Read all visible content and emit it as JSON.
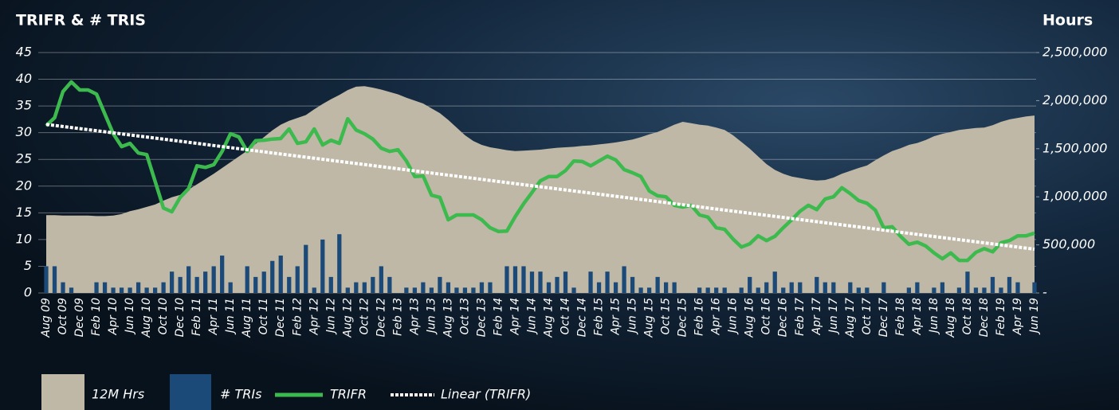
{
  "chart_data": {
    "type": "combo",
    "title": "TRIFR & # TRIS",
    "y2_label": "Hours",
    "categories": [
      "Aug 09",
      null,
      "Oct 09",
      null,
      "Dec 09",
      null,
      "Feb 10",
      null,
      "Apr 10",
      null,
      "Jun 10",
      null,
      "Aug 10",
      null,
      "Oct 10",
      null,
      "Dec 10",
      null,
      "Feb 11",
      null,
      "Apr 11",
      null,
      "Jun 11",
      null,
      "Aug 11",
      null,
      "Oct 11",
      null,
      "Dec 11",
      null,
      "Feb 12",
      null,
      "Apr 12",
      null,
      "Jun 12",
      null,
      "Aug 12",
      null,
      "Oct 12",
      null,
      "Dec 12",
      null,
      "Feb 13",
      null,
      "Apr 13",
      null,
      "Jun 13",
      null,
      "Aug 13",
      null,
      "Oct 13",
      null,
      "Dec 13",
      null,
      "Feb 14",
      null,
      "Apr 14",
      null,
      "Jun 14",
      null,
      "Aug 14",
      null,
      "Oct 14",
      null,
      "Dec 14",
      null,
      "Feb 15",
      null,
      "Apr 15",
      null,
      "Jun 15",
      null,
      "Aug 15",
      null,
      "Oct 15",
      null,
      "Dec 15",
      null,
      "Feb 16",
      null,
      "Apr 16",
      null,
      "Jun 16",
      null,
      "Aug 16",
      null,
      "Oct 16",
      null,
      "Dec 16",
      null,
      "Feb 17",
      null,
      "Apr 17",
      null,
      "Jun 17",
      null,
      "Aug 17",
      null,
      "Oct 17",
      null,
      "Dec 17",
      null,
      "Feb 18",
      null,
      "Apr 18",
      null,
      "Jun 18",
      null,
      "Aug 18",
      null,
      "Oct 18",
      null,
      "Dec 18",
      null,
      "Feb 19",
      null,
      "Apr 19",
      null,
      "Jun 19"
    ],
    "series": [
      {
        "name": "12M Hrs",
        "type": "area",
        "axis": "y2",
        "color": "#bfb8a6",
        "values": [
          810000,
          810000,
          805000,
          805000,
          805000,
          805000,
          800000,
          800000,
          805000,
          820000,
          850000,
          870000,
          895000,
          920000,
          960000,
          995000,
          1020000,
          1075000,
          1130000,
          1185000,
          1240000,
          1300000,
          1360000,
          1420000,
          1480000,
          1550000,
          1620000,
          1690000,
          1750000,
          1790000,
          1820000,
          1850000,
          1910000,
          1965000,
          2015000,
          2060000,
          2110000,
          2145000,
          2150000,
          2135000,
          2115000,
          2090000,
          2065000,
          2030000,
          2000000,
          1970000,
          1920000,
          1870000,
          1800000,
          1720000,
          1640000,
          1580000,
          1540000,
          1515000,
          1500000,
          1485000,
          1475000,
          1480000,
          1485000,
          1490000,
          1500000,
          1510000,
          1515000,
          1520000,
          1530000,
          1535000,
          1545000,
          1555000,
          1565000,
          1580000,
          1595000,
          1620000,
          1650000,
          1675000,
          1710000,
          1750000,
          1780000,
          1765000,
          1750000,
          1740000,
          1720000,
          1695000,
          1640000,
          1570000,
          1500000,
          1420000,
          1340000,
          1280000,
          1240000,
          1210000,
          1195000,
          1180000,
          1170000,
          1175000,
          1200000,
          1240000,
          1270000,
          1300000,
          1325000,
          1380000,
          1430000,
          1475000,
          1505000,
          1540000,
          1560000,
          1590000,
          1630000,
          1655000,
          1675000,
          1695000,
          1705000,
          1715000,
          1720000,
          1745000,
          1780000,
          1805000,
          1820000,
          1835000,
          1845000
        ]
      },
      {
        "name": "# TRIs",
        "type": "bar",
        "color": "#1c4a78",
        "values": [
          5,
          5,
          2,
          1,
          0,
          0,
          2,
          2,
          1,
          1,
          1,
          2,
          1,
          1,
          2,
          4,
          3,
          5,
          3,
          4,
          5,
          7,
          2,
          0,
          5,
          3,
          4,
          6,
          7,
          3,
          5,
          9,
          1,
          10,
          3,
          11,
          1,
          2,
          2,
          3,
          5,
          3,
          0,
          1,
          1,
          2,
          1,
          3,
          2,
          1,
          1,
          1,
          2,
          2,
          0,
          5,
          5,
          5,
          4,
          4,
          2,
          3,
          4,
          1,
          0,
          4,
          2,
          4,
          2,
          5,
          3,
          1,
          1,
          3,
          2,
          2,
          0,
          0,
          1,
          1,
          1,
          1,
          0,
          1,
          3,
          1,
          2,
          4,
          1,
          2,
          2,
          0,
          3,
          2,
          2,
          0,
          2,
          1,
          1,
          0,
          2,
          0,
          0,
          1,
          2,
          0,
          1,
          2,
          0,
          1,
          4,
          1,
          1,
          3,
          1,
          3,
          2,
          0,
          2
        ]
      },
      {
        "name": "TRIFR",
        "type": "line",
        "color": "#3dba4e",
        "values": [
          31.3,
          32.8,
          37.7,
          39.5,
          38,
          38,
          37.2,
          33.5,
          29.8,
          27.4,
          28,
          26.2,
          25.9,
          20.9,
          15.9,
          15.2,
          17.9,
          19.5,
          23.8,
          23.5,
          24,
          26.5,
          29.8,
          29.2,
          26.5,
          28.5,
          28.6,
          28.8,
          28.9,
          30.7,
          28,
          28.3,
          30.7,
          27.7,
          28.6,
          28,
          32.6,
          30.5,
          29.8,
          28.8,
          27.1,
          26.5,
          26.8,
          24.7,
          21.8,
          21.9,
          18.3,
          17.9,
          13.7,
          14.6,
          14.6,
          14.6,
          13.7,
          12.2,
          11.5,
          11.6,
          14.3,
          16.7,
          18.8,
          21,
          21.8,
          21.8,
          22.9,
          24.7,
          24.6,
          23.8,
          24.7,
          25.6,
          24.9,
          23.1,
          22.5,
          21.8,
          19.1,
          18.2,
          18,
          16.4,
          16.1,
          16.4,
          14.6,
          14.2,
          12.2,
          11.9,
          10.1,
          8.6,
          9.2,
          10.7,
          9.8,
          10.6,
          12.2,
          13.7,
          15.3,
          16.4,
          15.6,
          17.6,
          18,
          19.7,
          18.6,
          17.3,
          16.8,
          15.5,
          12.2,
          12.4,
          10.6,
          9.1,
          9.5,
          8.8,
          7.5,
          6.4,
          7.5,
          6.1,
          6.1,
          7.6,
          8.3,
          7.7,
          9.4,
          9.8,
          10.7,
          10.7,
          11.2
        ]
      }
    ],
    "trendline": {
      "name": "Linear (TRIFR)",
      "type": "linear",
      "color": "#ffffff"
    },
    "ylim": [
      0,
      45
    ],
    "yticks": [
      0,
      5,
      10,
      15,
      20,
      25,
      30,
      35,
      40,
      45
    ],
    "y2lim": [
      0,
      2500000
    ],
    "y2ticks": [
      {
        "value": 0,
        "label": "-"
      },
      {
        "value": 500000,
        "label": "500,000"
      },
      {
        "value": 1000000,
        "label": "1,000,000"
      },
      {
        "value": 1500000,
        "label": "1,500,000"
      },
      {
        "value": 2000000,
        "label": "2,000,000"
      },
      {
        "value": 2500000,
        "label": "2,500,000"
      }
    ],
    "grid": true
  }
}
